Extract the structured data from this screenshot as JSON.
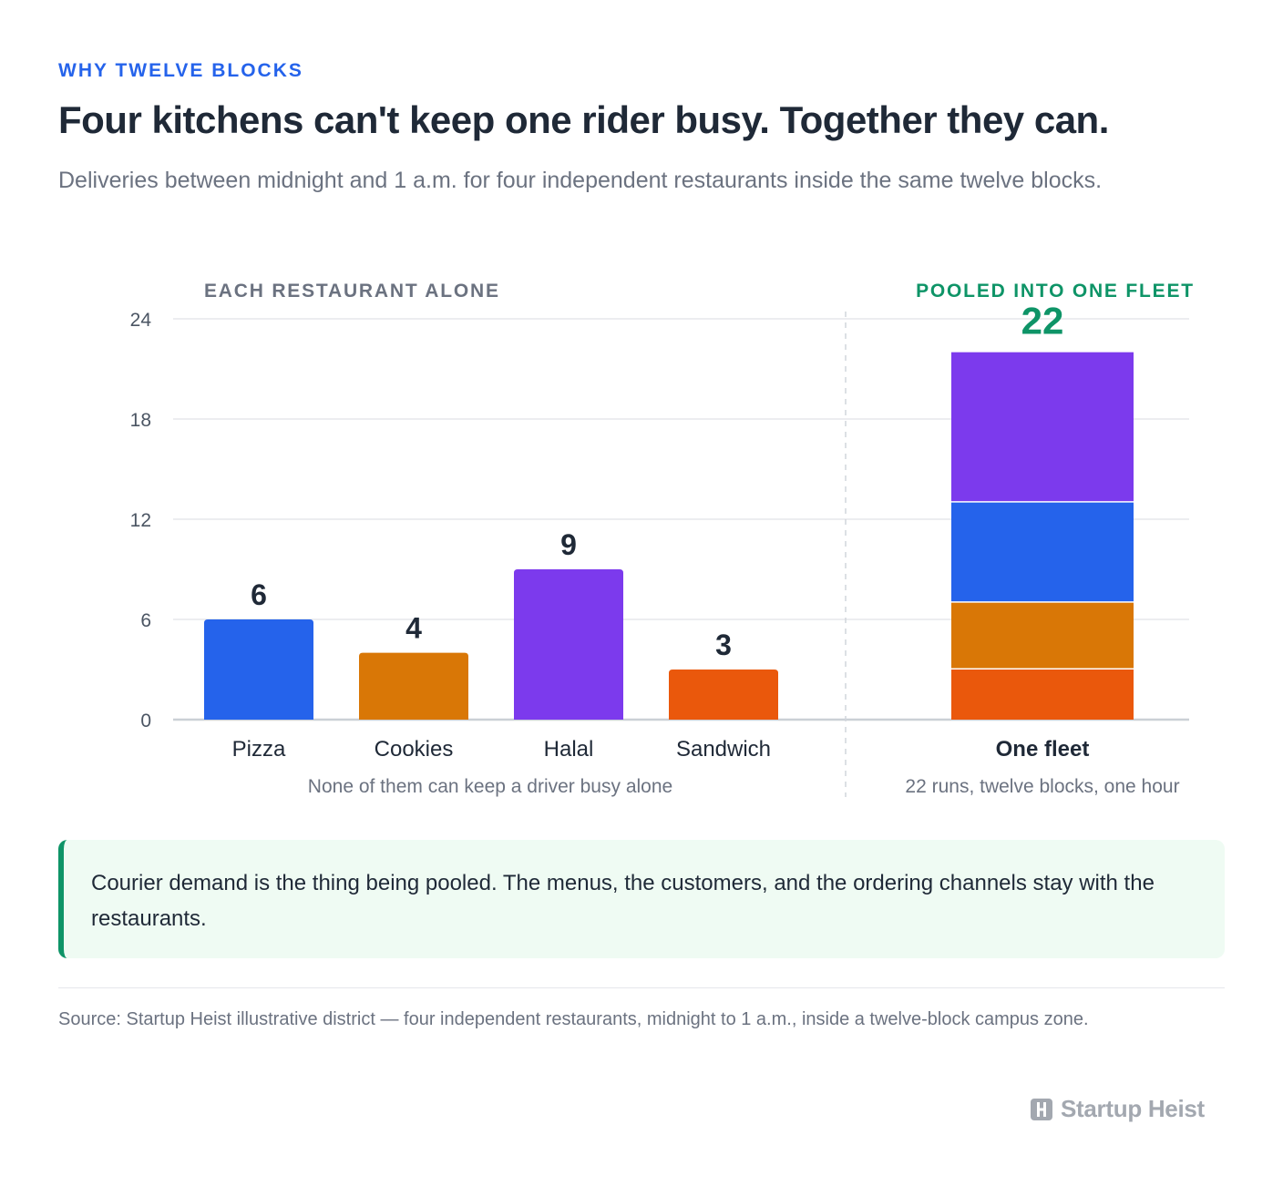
{
  "header": {
    "eyebrow": "WHY TWELVE BLOCKS",
    "title": "Four kitchens can't keep one rider busy. Together they can.",
    "subtitle": "Deliveries between midnight and 1 a.m. for four independent restaurants inside the same twelve blocks."
  },
  "chart_data": {
    "type": "bar",
    "ylim": [
      0,
      24
    ],
    "yticks": [
      0,
      6,
      12,
      18,
      24
    ],
    "grid": true,
    "panels": {
      "individual": {
        "label": "EACH RESTAURANT ALONE",
        "note": "None of them can keep a driver busy alone",
        "categories": [
          "Pizza",
          "Cookies",
          "Halal",
          "Sandwich"
        ],
        "values": [
          6,
          4,
          9,
          3
        ],
        "colors": [
          "#2563eb",
          "#d97706",
          "#7c3aed",
          "#ea580c"
        ]
      },
      "pooled": {
        "label": "POOLED INTO ONE FLEET",
        "category": "One fleet",
        "total": 22,
        "note": "22 runs, twelve blocks, one hour",
        "stack_order_bottom_to_top": [
          "Sandwich",
          "Cookies",
          "Pizza",
          "Halal"
        ],
        "stack_values": [
          3,
          4,
          6,
          9
        ],
        "stack_colors": [
          "#ea580c",
          "#d97706",
          "#2563eb",
          "#7c3aed"
        ]
      }
    }
  },
  "callout": {
    "text": "Courier demand is the thing being pooled. The menus, the customers, and the ordering channels stay with the restaurants."
  },
  "footer": {
    "source": "Source: Startup Heist illustrative district — four independent restaurants, midnight to 1 a.m., inside a twelve-block campus zone.",
    "brand": "Startup Heist",
    "brand_icon": "h-logo-icon"
  },
  "colors": {
    "accent_blue": "#2563eb",
    "accent_green": "#0e9467"
  }
}
